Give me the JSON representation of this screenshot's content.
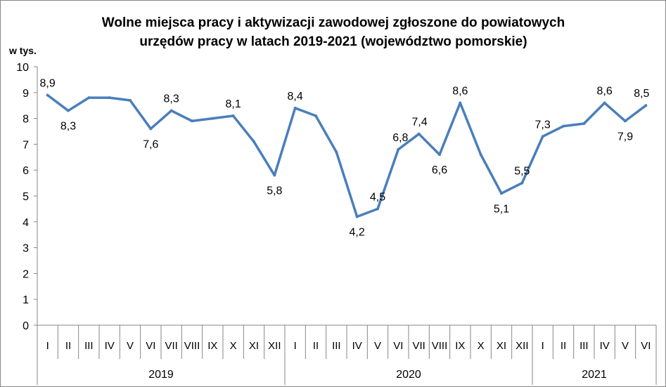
{
  "chart_data": {
    "type": "line",
    "title_line1": "Wolne miejsca pracy i aktywizacji zawodowej zgłoszone do powiatowych",
    "title_line2": "urzędów pracy w latach 2019-2021 (województwo pomorskie)",
    "ylabel": "w tys.",
    "xlabel": "",
    "ylim": [
      0,
      10
    ],
    "y_ticks": [
      0,
      1,
      2,
      3,
      4,
      5,
      6,
      7,
      8,
      9,
      10
    ],
    "grid": false,
    "legend": "none",
    "line_color": "#4A7EBB",
    "years": [
      {
        "label": "2019",
        "months": 12
      },
      {
        "label": "2020",
        "months": 12
      },
      {
        "label": "2021",
        "months": 6
      }
    ],
    "categories": [
      "I",
      "II",
      "III",
      "IV",
      "V",
      "VI",
      "VII",
      "VIII",
      "IX",
      "X",
      "XI",
      "XII",
      "I",
      "II",
      "III",
      "IV",
      "V",
      "VI",
      "VII",
      "VIII",
      "IX",
      "X",
      "XI",
      "XII",
      "I",
      "II",
      "III",
      "IV",
      "V",
      "VI"
    ],
    "values": [
      8.9,
      8.3,
      8.8,
      8.8,
      8.7,
      7.6,
      8.3,
      7.9,
      8.0,
      8.1,
      7.1,
      5.8,
      8.4,
      8.1,
      6.7,
      4.2,
      4.5,
      6.8,
      7.4,
      6.6,
      8.6,
      6.6,
      5.1,
      5.5,
      7.3,
      7.7,
      7.8,
      8.6,
      7.9,
      8.5
    ],
    "data_labels": [
      {
        "index": 0,
        "text": "8,9"
      },
      {
        "index": 1,
        "text": "8,3"
      },
      {
        "index": 5,
        "text": "7,6"
      },
      {
        "index": 6,
        "text": "8,3"
      },
      {
        "index": 9,
        "text": "8,1"
      },
      {
        "index": 11,
        "text": "5,8"
      },
      {
        "index": 12,
        "text": "8,4"
      },
      {
        "index": 15,
        "text": "4,2"
      },
      {
        "index": 16,
        "text": "4,5"
      },
      {
        "index": 17,
        "text": "6,8"
      },
      {
        "index": 18,
        "text": "7,4"
      },
      {
        "index": 19,
        "text": "6,6"
      },
      {
        "index": 20,
        "text": "8,6"
      },
      {
        "index": 22,
        "text": "5,1"
      },
      {
        "index": 23,
        "text": "5,5"
      },
      {
        "index": 24,
        "text": "7,3"
      },
      {
        "index": 27,
        "text": "8,6"
      },
      {
        "index": 28,
        "text": "7,9"
      },
      {
        "index": 29,
        "text": "8,5"
      }
    ]
  }
}
